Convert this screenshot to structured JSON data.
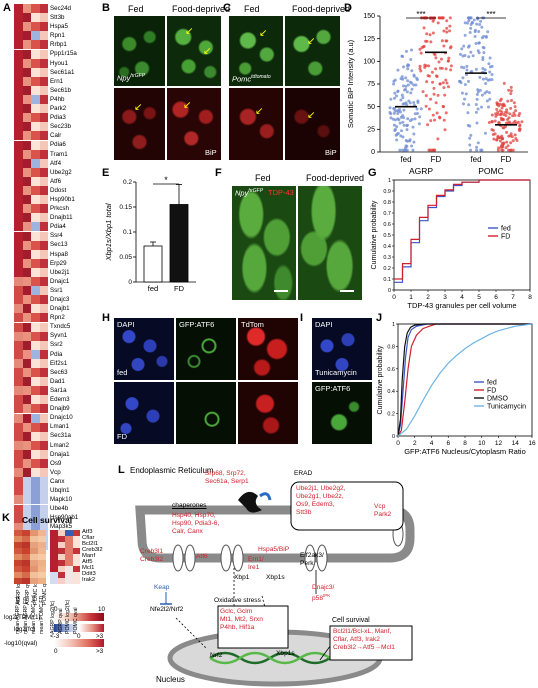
{
  "panels": {
    "A": "A",
    "B": "B",
    "C": "C",
    "D": "D",
    "E": "E",
    "F": "F",
    "G": "G",
    "H": "H",
    "I": "I",
    "J": "J",
    "K": "K",
    "L": "L"
  },
  "panelA": {
    "genes": [
      "Sec24d",
      "Stt3b",
      "Hspa5",
      "Rpn1",
      "Rrbp1",
      "Ppp1r15a",
      "Hyou1",
      "Sec61a1",
      "Ern1",
      "Sec61b",
      "P4hb",
      "Park2",
      "Pdia3",
      "Sec23b",
      "Calr",
      "Pdia6",
      "Tram1",
      "Atf4",
      "Ube2g2",
      "Atf6",
      "Ddost",
      "Hsp90b1",
      "Prkcsh",
      "Dnajb11",
      "Pdia4",
      "Ssr4",
      "Sec13",
      "Hspa8",
      "Erp29",
      "Ube2j1",
      "Dnajc1",
      "Ssr1",
      "Dnajc3",
      "Dnajb1",
      "Rpn2",
      "Txndc5",
      "Syvn1",
      "Ssr2",
      "Pdia",
      "Eif2s1",
      "Sec63",
      "Dad1",
      "Sar1a",
      "Edem3",
      "Dnajb9",
      "Dnajc10",
      "Lman1",
      "Sec31a",
      "Lman2",
      "Dnaja1",
      "Os9",
      "Vcp",
      "Canx",
      "Ubqln1",
      "Mapk10",
      "Ube4b",
      "Hsp90ab1",
      "Map3k5",
      "Man1a",
      "Cryab"
    ],
    "col_labels": [
      "AGRP log2(fc)",
      "AGRP qval",
      "POMC log2(fc)",
      "POMC qval"
    ],
    "legend": {
      "row1": "log2(TPM+1)",
      "row1_ticks": [
        "0",
        "10"
      ],
      "row2": "log2(fc)",
      "row2_ticks": [
        "<-3",
        "0",
        ">3"
      ],
      "row3": "-log10(qval)",
      "row3_ticks": [
        "0",
        ">3"
      ]
    }
  },
  "panelB": {
    "cond1": "Fed",
    "cond2": "Food-deprived",
    "marker": "Npy",
    "marker_sup": "hrGFP",
    "stain": "BiP"
  },
  "panelC": {
    "cond1": "Fed",
    "cond2": "Food-deprived",
    "marker": "Pomc",
    "marker_sup": "tdtomato",
    "stain": "BiP"
  },
  "chart_data": [
    {
      "id": "D",
      "type": "scatter",
      "ylabel": "Somatic BiP Intensity (a.u)",
      "yticks": [
        0,
        25,
        50,
        75,
        100,
        125,
        150
      ],
      "ylim": [
        0,
        150
      ],
      "categories": [
        "fed",
        "FD",
        "fed",
        "FD"
      ],
      "groups": [
        "AGRP",
        "POMC"
      ],
      "medians": [
        50,
        110,
        87,
        30
      ],
      "significance": [
        "***",
        "***"
      ],
      "colors": [
        "#6d8bd2",
        "#e0413d",
        "#6d8bd2",
        "#e0413d"
      ]
    },
    {
      "id": "E",
      "type": "bar",
      "categories": [
        "fed",
        "FD"
      ],
      "values": [
        0.072,
        0.155
      ],
      "errors": [
        0.008,
        0.04
      ],
      "ylabel": "Xbp1s/Xbp1 total",
      "yticks": [
        0,
        0.05,
        0.1,
        0.15,
        0.2
      ],
      "ylim": [
        0,
        0.2
      ],
      "significance": "*"
    },
    {
      "id": "G",
      "type": "line",
      "xlabel": "TDP-43 granules per cell volume",
      "ylabel": "Cumulative probability",
      "xticks": [
        0,
        1,
        2,
        3,
        4,
        5,
        6,
        7,
        8
      ],
      "yticks": [
        0,
        0.1,
        0.2,
        0.3,
        0.4,
        0.5,
        0.6,
        0.7,
        0.8,
        0.9,
        1
      ],
      "xlim": [
        0,
        8
      ],
      "ylim": [
        0,
        1
      ],
      "legend_position": "right",
      "series": [
        {
          "name": "fed",
          "color": "#3b55c4",
          "x": [
            0,
            0.5,
            0.5,
            1,
            1,
            1.5,
            1.5,
            2,
            2,
            2.5,
            2.5,
            3,
            3,
            3.5,
            3.5,
            4,
            4,
            5,
            5,
            8
          ],
          "y": [
            0.07,
            0.07,
            0.21,
            0.21,
            0.43,
            0.43,
            0.63,
            0.63,
            0.75,
            0.75,
            0.85,
            0.85,
            0.9,
            0.9,
            0.95,
            0.95,
            0.98,
            0.98,
            1,
            1
          ]
        },
        {
          "name": "FD",
          "color": "#d0202a",
          "x": [
            0,
            0.5,
            0.5,
            1,
            1,
            1.5,
            1.5,
            2,
            2,
            2.5,
            2.5,
            3,
            3,
            3.5,
            3.5,
            4,
            4,
            5,
            5,
            8
          ],
          "y": [
            0.1,
            0.1,
            0.24,
            0.24,
            0.46,
            0.46,
            0.66,
            0.66,
            0.77,
            0.77,
            0.86,
            0.86,
            0.91,
            0.91,
            0.96,
            0.96,
            0.98,
            0.98,
            1,
            1
          ]
        }
      ]
    },
    {
      "id": "J",
      "type": "line",
      "xlabel": "GFP:ATF6 Nucleus/Cytoplasm Ratio",
      "ylabel": "Cumulative probability",
      "xticks": [
        0,
        2,
        4,
        6,
        8,
        10,
        12,
        14,
        16
      ],
      "yticks": [
        0,
        0.2,
        0.4,
        0.6,
        0.8,
        1
      ],
      "xlim": [
        0,
        16
      ],
      "ylim": [
        0,
        1
      ],
      "legend_position": "right",
      "series": [
        {
          "name": "fed",
          "color": "#3b55c4",
          "x": [
            0,
            0.3,
            0.6,
            0.9,
            1.2,
            1.6,
            2.2,
            3.5,
            16
          ],
          "y": [
            0,
            0.1,
            0.4,
            0.7,
            0.88,
            0.95,
            0.98,
            1,
            1
          ]
        },
        {
          "name": "FD",
          "color": "#d0202a",
          "x": [
            0,
            0.4,
            0.8,
            1.2,
            1.6,
            2.2,
            3,
            4.5,
            16
          ],
          "y": [
            0,
            0.05,
            0.3,
            0.6,
            0.8,
            0.9,
            0.96,
            1,
            1
          ]
        },
        {
          "name": "DMSO",
          "color": "#111111",
          "x": [
            0,
            0.3,
            0.5,
            0.8,
            1.1,
            1.5,
            2,
            3,
            16
          ],
          "y": [
            0,
            0.15,
            0.5,
            0.8,
            0.92,
            0.97,
            0.99,
            1,
            1
          ]
        },
        {
          "name": "Tunicamycin",
          "color": "#6fb4e4",
          "x": [
            0,
            1,
            2,
            3,
            4,
            5,
            6,
            7,
            8,
            9,
            10,
            11,
            12,
            13,
            14,
            16
          ],
          "y": [
            0,
            0.06,
            0.18,
            0.32,
            0.45,
            0.56,
            0.65,
            0.72,
            0.78,
            0.83,
            0.87,
            0.91,
            0.94,
            0.96,
            0.98,
            1
          ]
        }
      ]
    }
  ],
  "panelF": {
    "cond1": "Fed",
    "cond2": "Food-deprived",
    "marker": "Npy",
    "marker_sup": "hrGFP",
    "stain": "TDP-43"
  },
  "panelH": {
    "labels": [
      "DAPI",
      "GFP:ATF6",
      "TdTom"
    ],
    "row1": "fed",
    "row2": "FD"
  },
  "panelI": {
    "labels": [
      "DAPI",
      "GFP:ATF6"
    ],
    "treatment": "Tunicamycin"
  },
  "panelK": {
    "title": "Cell survival",
    "genes": [
      "Atf3",
      "Cflar",
      "Bcl2l1",
      "Creb3l2",
      "Manf",
      "Atf5",
      "Mcl1",
      "Ddit3",
      "Irak2"
    ],
    "col_labels_left": [
      "mean AGRP fed",
      "mean AGRP FD",
      "mean POMC fed",
      "mean POMC FD"
    ],
    "col_labels_right": [
      "AGRP log2(fc)",
      "AGRP qval",
      "POMC log2(fc)",
      "POMC qval"
    ]
  },
  "panelL": {
    "er": "Endoplasmic Reticulum",
    "nucleus": "Nucleus",
    "erad_title": "ERAD",
    "erad_genes": [
      "Ube2j1, Ube2g2,",
      "Ube2g1, Ube2z,",
      "Os9, Edem3,",
      "Stt3b"
    ],
    "erad_right": [
      "Vcp",
      "Park2"
    ],
    "translocon": [
      "Srp68, Srp72,",
      "Sec61a, Serp1"
    ],
    "chaperones_title": "chaperones",
    "chaperones": [
      "Hsp40, Hsp70,",
      "Hsp90, Pdia3-6,",
      "Calr, Canx"
    ],
    "hspa5": "Hspa5/BiP",
    "creb": [
      "Creb3l1",
      "Creb3l2"
    ],
    "atf6": "Atf6",
    "ern1": [
      "Ern1/",
      "Ire1"
    ],
    "eif2ak3": [
      "Eif2ak3/",
      "Perk"
    ],
    "xbp1": "Xbp1",
    "xbp1s": "Xbp1s",
    "xbp1s_nuc": "Xbp1s",
    "keap": "Keap",
    "nfe2l2": "Nfe2l2/Nrf2",
    "ox_title": "Oxidative stress",
    "ox_genes": [
      "Gclc, Gclm",
      "Mt1, Mt2, Srxn",
      "P4hb, Hif1a"
    ],
    "nrf2": "Nrf2",
    "dnajc3": [
      "Dnajc3/",
      "p58"
    ],
    "dnajc3_sup": "IPK",
    "cs_title": "Cell survival",
    "cs_genes": [
      "Bcl2l1/Bcl-xL, Manf,",
      "Cflar, Atf3, Irak2",
      "Creb3l2→Atf5→Mcl1"
    ]
  }
}
